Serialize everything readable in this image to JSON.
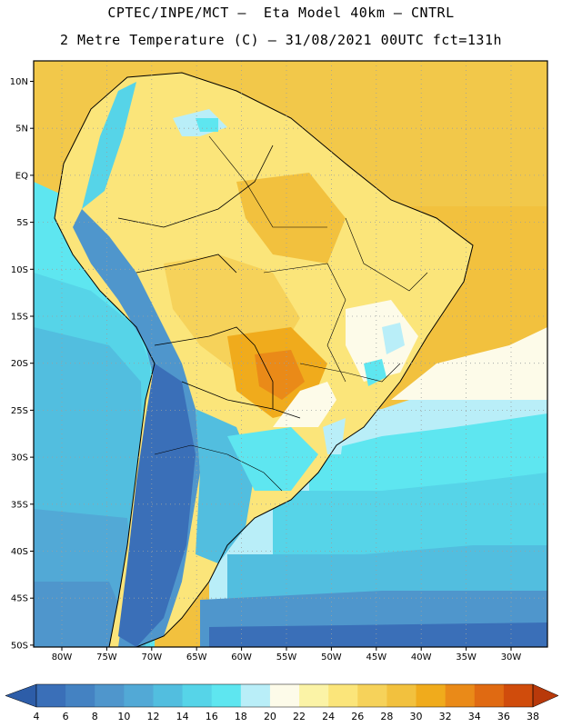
{
  "title_line1": "CPTEC/INPE/MCT –  Eta Model 40km – CNTRL",
  "title_line2": "2 Metre Temperature (C) – 31/08/2021 00UTC fct=131h",
  "lat_labels": [
    "10N",
    "5N",
    "EQ",
    "5S",
    "10S",
    "15S",
    "20S",
    "25S",
    "30S",
    "35S",
    "40S",
    "45S",
    "50S"
  ],
  "lon_labels": [
    "80W",
    "75W",
    "70W",
    "65W",
    "60W",
    "55W",
    "50W",
    "45W",
    "40W",
    "35W",
    "30W"
  ],
  "colorbar": {
    "values": [
      "4",
      "6",
      "8",
      "10",
      "12",
      "14",
      "16",
      "18",
      "20",
      "22",
      "24",
      "26",
      "28",
      "30",
      "32",
      "34",
      "36",
      "38"
    ],
    "colors": [
      "#3a6fb8",
      "#4482c2",
      "#4f96cc",
      "#52a9d6",
      "#52bedf",
      "#56d4e8",
      "#5ee6f0",
      "#b9eef8",
      "#fdfbe9",
      "#fbf3a6",
      "#fbe57a",
      "#f6d25a",
      "#f2c13e",
      "#f0ab1c",
      "#ea8a18",
      "#e06a12",
      "#d04c0c"
    ],
    "under_color": "#2d5da8",
    "over_color": "#b8390a"
  }
}
